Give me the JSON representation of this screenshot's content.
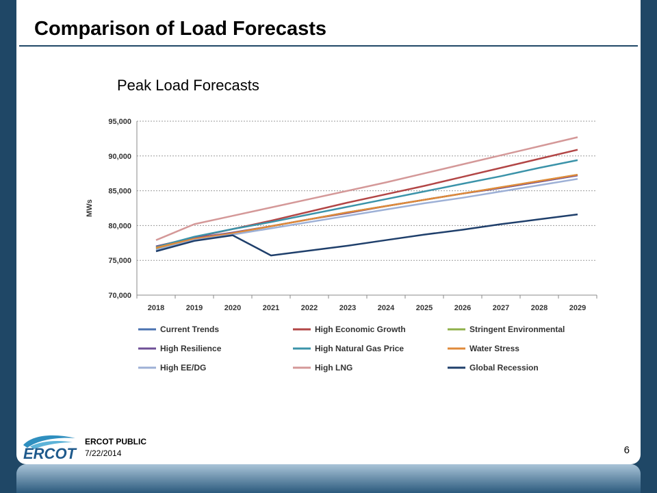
{
  "header": {
    "title": "Comparison of Load Forecasts"
  },
  "chart_title": "Peak Load Forecasts",
  "footer": {
    "classification": "ERCOT PUBLIC",
    "date": "7/22/2014",
    "page_number": "6",
    "logo_text": "ERCOT"
  },
  "colors": {
    "background": "#1f4766",
    "rule": "#1f4766",
    "grid": "#999999"
  },
  "chart_data": {
    "type": "line",
    "title": "Peak Load Forecasts",
    "xlabel": "",
    "ylabel": "MWs",
    "x": [
      "2018",
      "2019",
      "2020",
      "2021",
      "2022",
      "2023",
      "2024",
      "2025",
      "2026",
      "2027",
      "2028",
      "2029"
    ],
    "ylim": [
      70000,
      95000
    ],
    "yticks": [
      70000,
      75000,
      80000,
      85000,
      90000,
      95000
    ],
    "ytick_labels": [
      "70,000",
      "75,000",
      "80,000",
      "85,000",
      "90,000",
      "95,000"
    ],
    "grid": true,
    "legend_position": "bottom",
    "series": [
      {
        "name": "Current Trends",
        "color": "#4a72b0",
        "values": [
          76700,
          78100,
          78900,
          79900,
          80900,
          81900,
          82800,
          83700,
          84600,
          85400,
          86300,
          87200
        ]
      },
      {
        "name": "High Economic Growth",
        "color": "#b24646",
        "values": [
          77000,
          78300,
          79500,
          80700,
          82000,
          83300,
          84500,
          85700,
          87000,
          88300,
          89600,
          90900
        ]
      },
      {
        "name": "Stringent Environmental",
        "color": "#8fb04a",
        "values": [
          76700,
          78100,
          78900,
          79900,
          80900,
          81900,
          82800,
          83700,
          84600,
          85500,
          86400,
          87300
        ]
      },
      {
        "name": "High Resilience",
        "color": "#6e4f96",
        "values": [
          77000,
          78200,
          79000,
          79900,
          80900,
          81800,
          82800,
          83700,
          84600,
          85400,
          86300,
          87200
        ]
      },
      {
        "name": "High Natural Gas Price",
        "color": "#3b93a9",
        "values": [
          76900,
          78400,
          79500,
          80500,
          81600,
          82700,
          83800,
          84900,
          86000,
          87100,
          88300,
          89400
        ]
      },
      {
        "name": "Water Stress",
        "color": "#e08a3a",
        "values": [
          76800,
          78100,
          78900,
          79900,
          80900,
          81900,
          82800,
          83700,
          84600,
          85500,
          86400,
          87300
        ]
      },
      {
        "name": "High EE/DG",
        "color": "#9db0d6",
        "values": [
          76500,
          77900,
          78700,
          79600,
          80500,
          81400,
          82300,
          83200,
          84000,
          84900,
          85800,
          86700
        ]
      },
      {
        "name": "High LNG",
        "color": "#d49898",
        "values": [
          77900,
          80200,
          81400,
          82600,
          83800,
          85000,
          86200,
          87500,
          88800,
          90100,
          91400,
          92700
        ]
      },
      {
        "name": "Global Recession",
        "color": "#1f3f6b",
        "values": [
          76300,
          77800,
          78600,
          75700,
          76400,
          77100,
          77900,
          78700,
          79400,
          80200,
          80900,
          81600
        ]
      }
    ]
  }
}
